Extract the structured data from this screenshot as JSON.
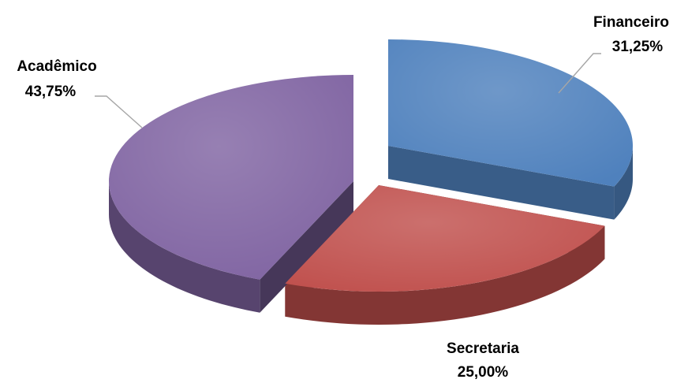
{
  "chart_data": {
    "type": "pie",
    "style": "3d-exploded",
    "title": "",
    "series": [
      {
        "slices": [
          {
            "label": "Financeiro",
            "value": 31.25,
            "percent_label": "31,25%",
            "color": "#4f81bd"
          },
          {
            "label": "Secretaria",
            "value": 25.0,
            "percent_label": "25,00%",
            "color": "#c0504d"
          },
          {
            "label": "Acadêmico",
            "value": 43.75,
            "percent_label": "43,75%",
            "color": "#8064a2"
          }
        ]
      }
    ],
    "legend": "none",
    "data_labels": "outside-with-leader-lines"
  }
}
